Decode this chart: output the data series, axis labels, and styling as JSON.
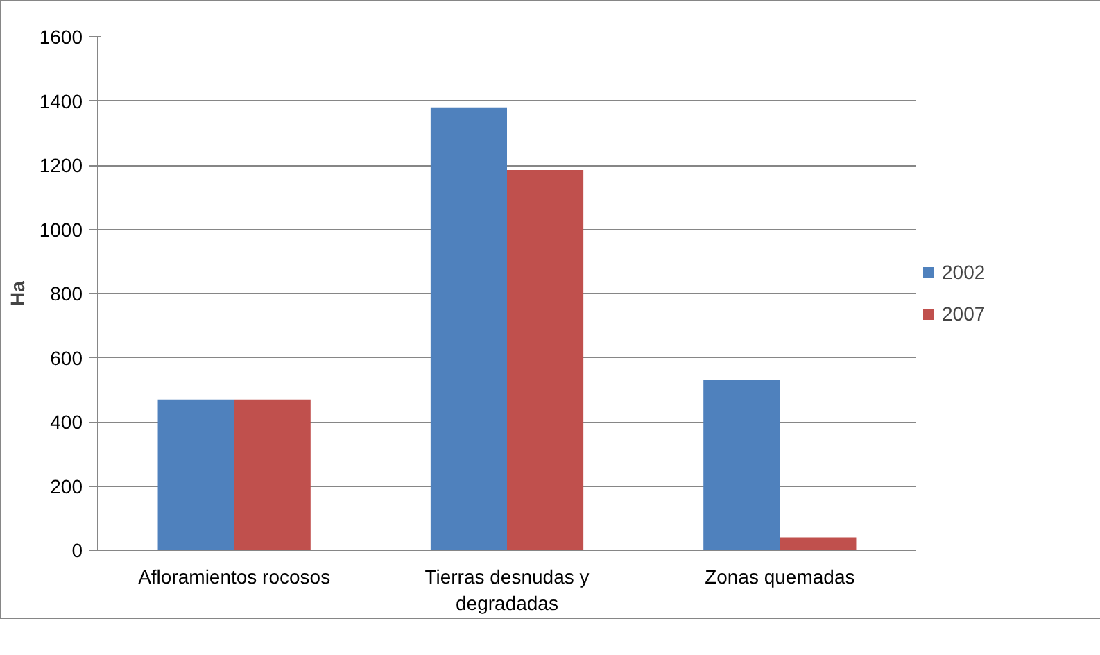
{
  "chart_data": {
    "type": "bar",
    "ylabel": "Ha",
    "categories": [
      "Afloramientos rocosos",
      "Tierras desnudas y degradadas",
      "Zonas quemadas"
    ],
    "series": [
      {
        "name": "2002",
        "color": "#4f81bd",
        "values": [
          470,
          1380,
          530
        ]
      },
      {
        "name": "2007",
        "color": "#c0504d",
        "values": [
          470,
          1185,
          40
        ]
      }
    ],
    "ylim": [
      0,
      1600
    ],
    "yticks": [
      0,
      200,
      400,
      600,
      800,
      1000,
      1200,
      1400,
      1600
    ],
    "grid": "y",
    "legend": "right"
  }
}
